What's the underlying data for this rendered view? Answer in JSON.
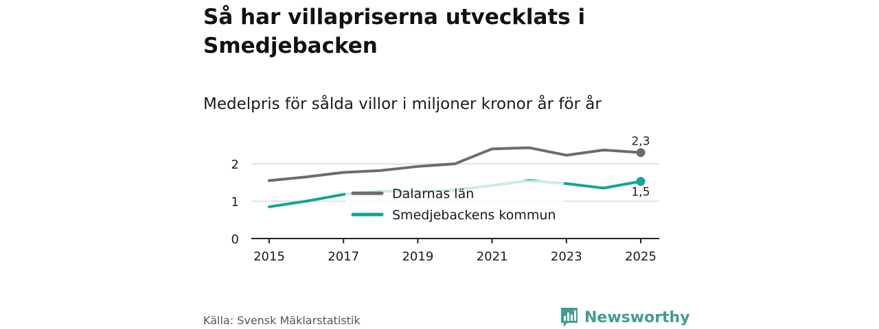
{
  "title": "Så har villapriserna utvecklats i Smedjebacken",
  "subtitle": "Medelpris för sålda villor i miljoner kronor år för år",
  "source": "Källa: Svensk Mäklarstatistik",
  "brand": "Newsworthy",
  "chart_data": {
    "type": "line",
    "x": [
      2015,
      2016,
      2017,
      2018,
      2019,
      2020,
      2021,
      2022,
      2023,
      2024,
      2025
    ],
    "xticks": [
      "2015",
      "2017",
      "2019",
      "2021",
      "2023",
      "2025"
    ],
    "yticks": [
      "0",
      "1",
      "2"
    ],
    "ylim": [
      0,
      2.6
    ],
    "series": [
      {
        "name": "Dalarnas län",
        "color": "#6b6b73",
        "values": [
          1.55,
          1.65,
          1.77,
          1.82,
          1.93,
          2.0,
          2.4,
          2.43,
          2.23,
          2.37,
          2.3
        ],
        "end_label": "2,3"
      },
      {
        "name": "Smedjebackens kommun",
        "color": "#12a594",
        "values": [
          0.85,
          1.0,
          1.18,
          1.27,
          1.25,
          1.3,
          1.42,
          1.55,
          1.47,
          1.35,
          1.53
        ],
        "end_label": "1,5"
      }
    ]
  }
}
